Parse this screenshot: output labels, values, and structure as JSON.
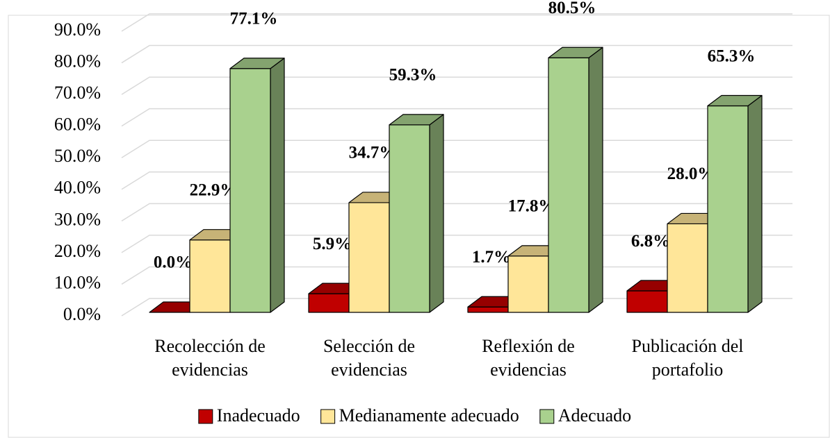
{
  "chart_data": {
    "type": "bar3d",
    "categories": [
      "Recolección de evidencias",
      "Selección de evidencias",
      "Reflexión de evidencias",
      "Publicación del portafolio"
    ],
    "series": [
      {
        "name": "Inadecuado",
        "color": "#c00000",
        "values": [
          0.0,
          5.9,
          1.7,
          6.8
        ],
        "value_labels": [
          "0.0%",
          "5.9%",
          "1.7%",
          "6.8%"
        ]
      },
      {
        "name": "Medianamente adecuado",
        "color": "#ffe699",
        "values": [
          22.9,
          34.7,
          17.8,
          28.0
        ],
        "value_labels": [
          "22.9%",
          "34.7%",
          "17.8%",
          "28.0%"
        ]
      },
      {
        "name": "Adecuado",
        "color": "#a9d18e",
        "values": [
          77.1,
          59.3,
          80.5,
          65.3
        ],
        "value_labels": [
          "77.1%",
          "59.3%",
          "80.5%",
          "65.3%"
        ]
      }
    ],
    "ylim": [
      0,
      90
    ],
    "yticks": [
      {
        "value": 0,
        "label": "0.0%"
      },
      {
        "value": 10,
        "label": "10.0%"
      },
      {
        "value": 20,
        "label": "20.0%"
      },
      {
        "value": 30,
        "label": "30.0%"
      },
      {
        "value": 40,
        "label": "40.0%"
      },
      {
        "value": 50,
        "label": "50.0%"
      },
      {
        "value": 60,
        "label": "60.0%"
      },
      {
        "value": 70,
        "label": "70.0%"
      },
      {
        "value": 80,
        "label": "80.0%"
      },
      {
        "value": 90,
        "label": "90.0%"
      }
    ],
    "grid": true,
    "legend": "bottom"
  }
}
